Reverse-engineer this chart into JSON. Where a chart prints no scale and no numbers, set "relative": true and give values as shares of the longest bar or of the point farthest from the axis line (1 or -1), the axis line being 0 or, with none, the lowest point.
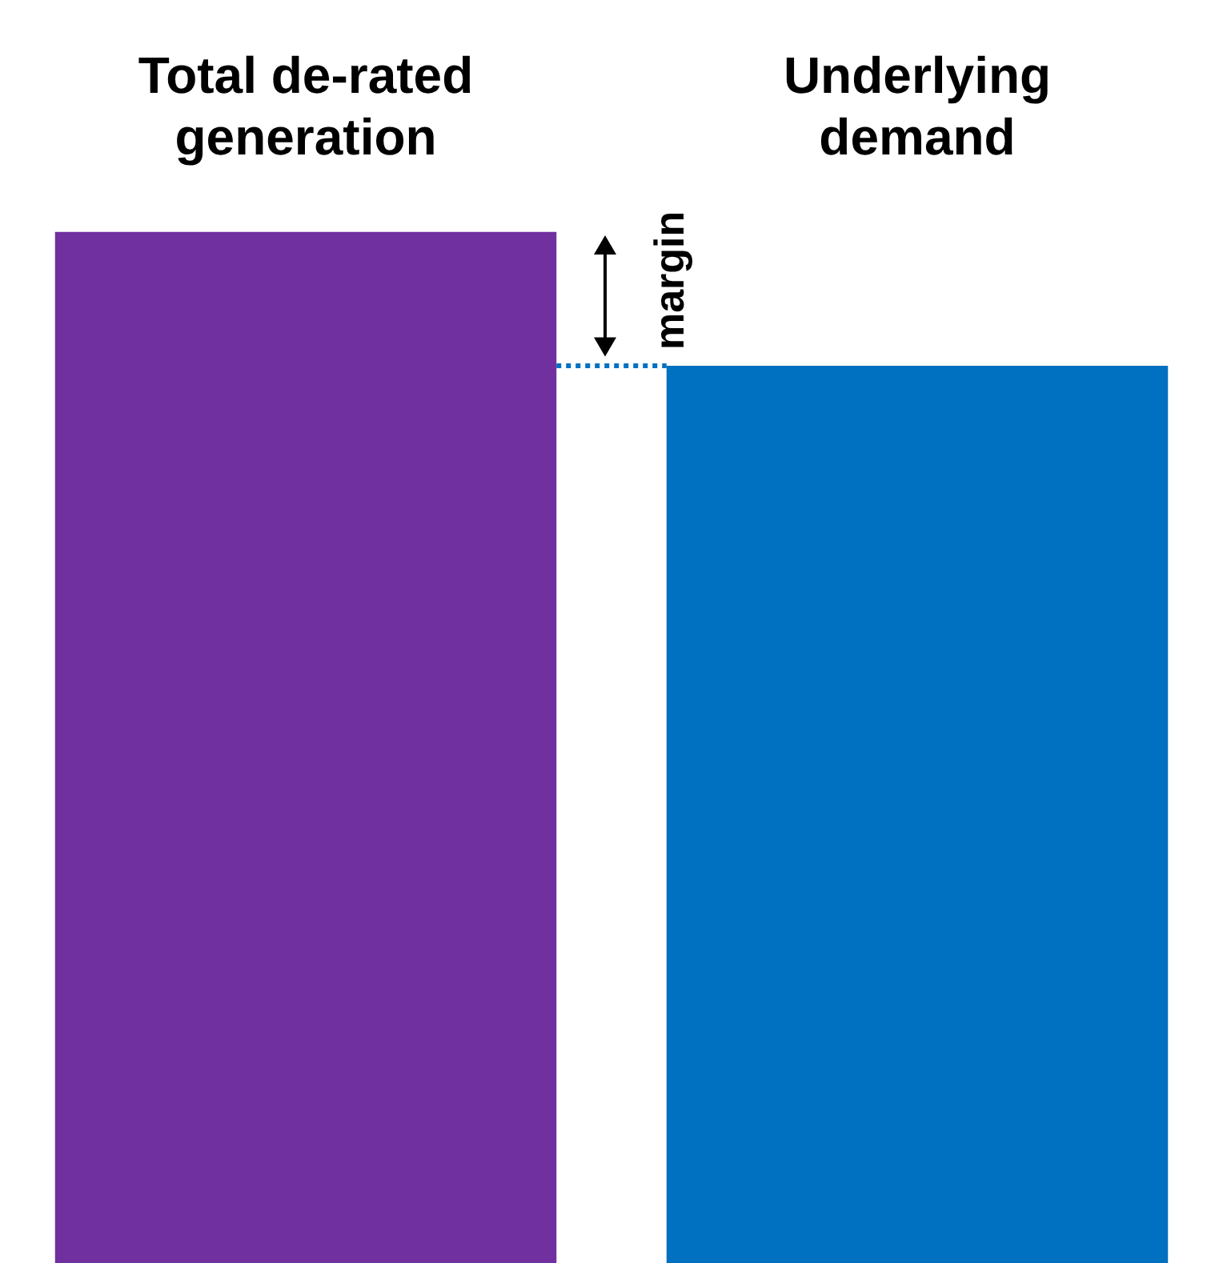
{
  "chart_data": {
    "type": "bar",
    "relative": true,
    "categories": [
      "Total de-rated generation",
      "Underlying demand"
    ],
    "values": [
      1,
      0.87
    ],
    "colors": [
      "#7030a0",
      "#0070c0"
    ],
    "ref_lines": [
      {
        "axis": "y",
        "value": 0.87,
        "color": "#0070c0",
        "line_style": "dotted"
      }
    ],
    "annotations": [
      "margin"
    ],
    "grid": false,
    "legend": false
  }
}
